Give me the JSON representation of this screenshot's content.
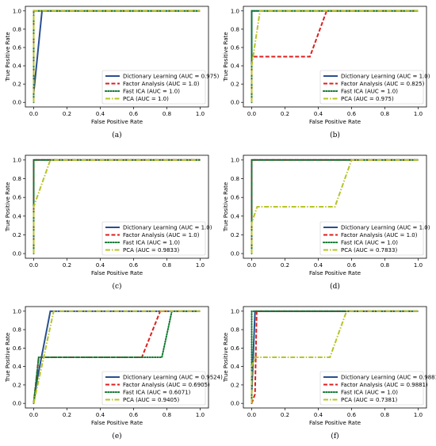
{
  "axes": {
    "xlabel": "False Positive Rate",
    "ylabel": "True Positive Rate",
    "xticks": [
      "0.0",
      "0.2",
      "0.4",
      "0.6",
      "0.8",
      "1.0"
    ],
    "yticks": [
      "0.0",
      "0.2",
      "0.4",
      "0.6",
      "0.8",
      "1.0"
    ]
  },
  "colors": {
    "Dictionary Learning": "#2a4f8f",
    "Factor Analysis": "#dd1f1f",
    "Fast ICA": "#0e7a2e",
    "PCA": "#b7c425"
  },
  "chart_data": [
    {
      "type": "line",
      "caption": "(a)",
      "xlabel": "False Positive Rate",
      "ylabel": "True Positive Rate",
      "xlim": [
        0,
        1
      ],
      "ylim": [
        0,
        1
      ],
      "grid": false,
      "legend": "lower-right",
      "series": [
        {
          "name": "Dictionary Learning",
          "label": "Dictionary Learning (AUC = 0.975)",
          "style": "solid",
          "x": [
            0,
            0,
            0.05,
            1
          ],
          "y": [
            0,
            0.1,
            1,
            1
          ]
        },
        {
          "name": "Factor Analysis",
          "label": "Factor Analysis (AUC = 1.0)",
          "style": "dashed",
          "x": [
            0,
            0,
            1
          ],
          "y": [
            0,
            1,
            1
          ]
        },
        {
          "name": "Fast ICA",
          "label": "Fast ICA (AUC = 1.0)",
          "style": "dotted",
          "x": [
            0,
            0,
            1
          ],
          "y": [
            0,
            1,
            1
          ]
        },
        {
          "name": "PCA",
          "label": "PCA (AUC = 1.0)",
          "style": "dashdot",
          "x": [
            0,
            0,
            1
          ],
          "y": [
            0,
            1,
            1
          ]
        }
      ]
    },
    {
      "type": "line",
      "caption": "(b)",
      "xlabel": "False Positive Rate",
      "ylabel": "True Positive Rate",
      "xlim": [
        0,
        1
      ],
      "ylim": [
        0,
        1
      ],
      "grid": false,
      "legend": "lower-right",
      "series": [
        {
          "name": "Dictionary Learning",
          "label": "Dictionary Learning (AUC = 1.0)",
          "style": "solid",
          "x": [
            0,
            0,
            1
          ],
          "y": [
            0,
            1,
            1
          ]
        },
        {
          "name": "Factor Analysis",
          "label": "Factor Analysis (AUC = 0.825)",
          "style": "dashed",
          "x": [
            0,
            0,
            0.35,
            0.45,
            1
          ],
          "y": [
            0,
            0.5,
            0.5,
            1,
            1
          ]
        },
        {
          "name": "Fast ICA",
          "label": "Fast ICA (AUC = 1.0)",
          "style": "dotted",
          "x": [
            0,
            0,
            1
          ],
          "y": [
            0,
            1,
            1
          ]
        },
        {
          "name": "PCA",
          "label": "PCA (AUC = 0.975)",
          "style": "dashdot",
          "x": [
            0,
            0,
            0.05,
            1
          ],
          "y": [
            0,
            0.4,
            1,
            1
          ]
        }
      ]
    },
    {
      "type": "line",
      "caption": "(c)",
      "xlabel": "False Positive Rate",
      "ylabel": "True Positive Rate",
      "xlim": [
        0,
        1
      ],
      "ylim": [
        0,
        1
      ],
      "grid": false,
      "legend": "lower-right",
      "series": [
        {
          "name": "Dictionary Learning",
          "label": "Dictionary Learning (AUC = 1.0)",
          "style": "solid",
          "x": [
            0,
            0,
            1
          ],
          "y": [
            0,
            1,
            1
          ]
        },
        {
          "name": "Factor Analysis",
          "label": "Factor Analysis (AUC = 1.0)",
          "style": "dashed",
          "x": [
            0,
            0,
            1
          ],
          "y": [
            0,
            1,
            1
          ]
        },
        {
          "name": "Fast ICA",
          "label": "Fast ICA (AUC = 1.0)",
          "style": "dotted",
          "x": [
            0,
            0,
            1
          ],
          "y": [
            0,
            1,
            1
          ]
        },
        {
          "name": "PCA",
          "label": "PCA (AUC = 0.9833)",
          "style": "dashdot",
          "x": [
            0,
            0,
            0.1,
            1
          ],
          "y": [
            0,
            0.5,
            1,
            1
          ]
        }
      ]
    },
    {
      "type": "line",
      "caption": "(d)",
      "xlabel": "False Positive Rate",
      "ylabel": "True Positive Rate",
      "xlim": [
        0,
        1
      ],
      "ylim": [
        0,
        1
      ],
      "grid": false,
      "legend": "lower-right",
      "series": [
        {
          "name": "Dictionary Learning",
          "label": "Dictionary Learning (AUC = 1.0)",
          "style": "solid",
          "x": [
            0,
            0,
            1
          ],
          "y": [
            0,
            1,
            1
          ]
        },
        {
          "name": "Factor Analysis",
          "label": "Factor Analysis (AUC = 1.0)",
          "style": "dashed",
          "x": [
            0,
            0,
            1
          ],
          "y": [
            0,
            1,
            1
          ]
        },
        {
          "name": "Fast ICA",
          "label": "Fast ICA (AUC = 1.0)",
          "style": "dotted",
          "x": [
            0,
            0,
            1
          ],
          "y": [
            0,
            1,
            1
          ]
        },
        {
          "name": "PCA",
          "label": "PCA (AUC = 0.7833)",
          "style": "dashdot",
          "x": [
            0,
            0,
            0.033,
            0.5,
            0.6,
            1
          ],
          "y": [
            0,
            0.33,
            0.5,
            0.5,
            1,
            1
          ]
        }
      ]
    },
    {
      "type": "line",
      "caption": "(e)",
      "xlabel": "False Positive Rate",
      "ylabel": "True Positive Rate",
      "xlim": [
        0,
        1
      ],
      "ylim": [
        0,
        1
      ],
      "grid": false,
      "legend": "lower-right",
      "series": [
        {
          "name": "Dictionary Learning",
          "label": "Dictionary Learning (AUC = 0.9524)",
          "style": "solid",
          "x": [
            0,
            0.02,
            0.1,
            1
          ],
          "y": [
            0,
            0.25,
            1,
            1
          ]
        },
        {
          "name": "Factor Analysis",
          "label": "Factor Analysis (AUC = 0.6905)",
          "style": "dashed",
          "x": [
            0,
            0.03,
            0.65,
            0.76,
            1
          ],
          "y": [
            0,
            0.5,
            0.5,
            1,
            1
          ]
        },
        {
          "name": "Fast ICA",
          "label": "Fast ICA (AUC = 0.6071)",
          "style": "dotted",
          "x": [
            0,
            0.03,
            0.77,
            0.83,
            1
          ],
          "y": [
            0,
            0.5,
            0.5,
            1,
            1
          ]
        },
        {
          "name": "PCA",
          "label": "PCA (AUC = 0.9405)",
          "style": "dashdot",
          "x": [
            0,
            0.12,
            1
          ],
          "y": [
            0,
            1,
            1
          ]
        }
      ]
    },
    {
      "type": "line",
      "caption": "(f)",
      "xlabel": "False Positive Rate",
      "ylabel": "True Positive Rate",
      "xlim": [
        0,
        1
      ],
      "ylim": [
        0,
        1
      ],
      "grid": false,
      "legend": "lower-right",
      "series": [
        {
          "name": "Dictionary Learning",
          "label": "Dictionary Learning (AUC = 0.9881)",
          "style": "solid",
          "x": [
            0,
            0,
            0.02,
            1
          ],
          "y": [
            0,
            0.1,
            1,
            1
          ]
        },
        {
          "name": "Factor Analysis",
          "label": "Factor Analysis (AUC = 0.9881)",
          "style": "dashed",
          "x": [
            0,
            0.02,
            0.03,
            1
          ],
          "y": [
            0,
            0.1,
            1,
            1
          ]
        },
        {
          "name": "Fast ICA",
          "label": "Fast ICA (AUC = 1.0)",
          "style": "dotted",
          "x": [
            0,
            0,
            1
          ],
          "y": [
            0,
            1,
            1
          ]
        },
        {
          "name": "PCA",
          "label": "PCA (AUC = 0.7381)",
          "style": "dashdot",
          "x": [
            0,
            0,
            0.02,
            0.47,
            0.57,
            1
          ],
          "y": [
            0,
            0.4,
            0.5,
            0.5,
            1,
            1
          ]
        }
      ]
    }
  ]
}
